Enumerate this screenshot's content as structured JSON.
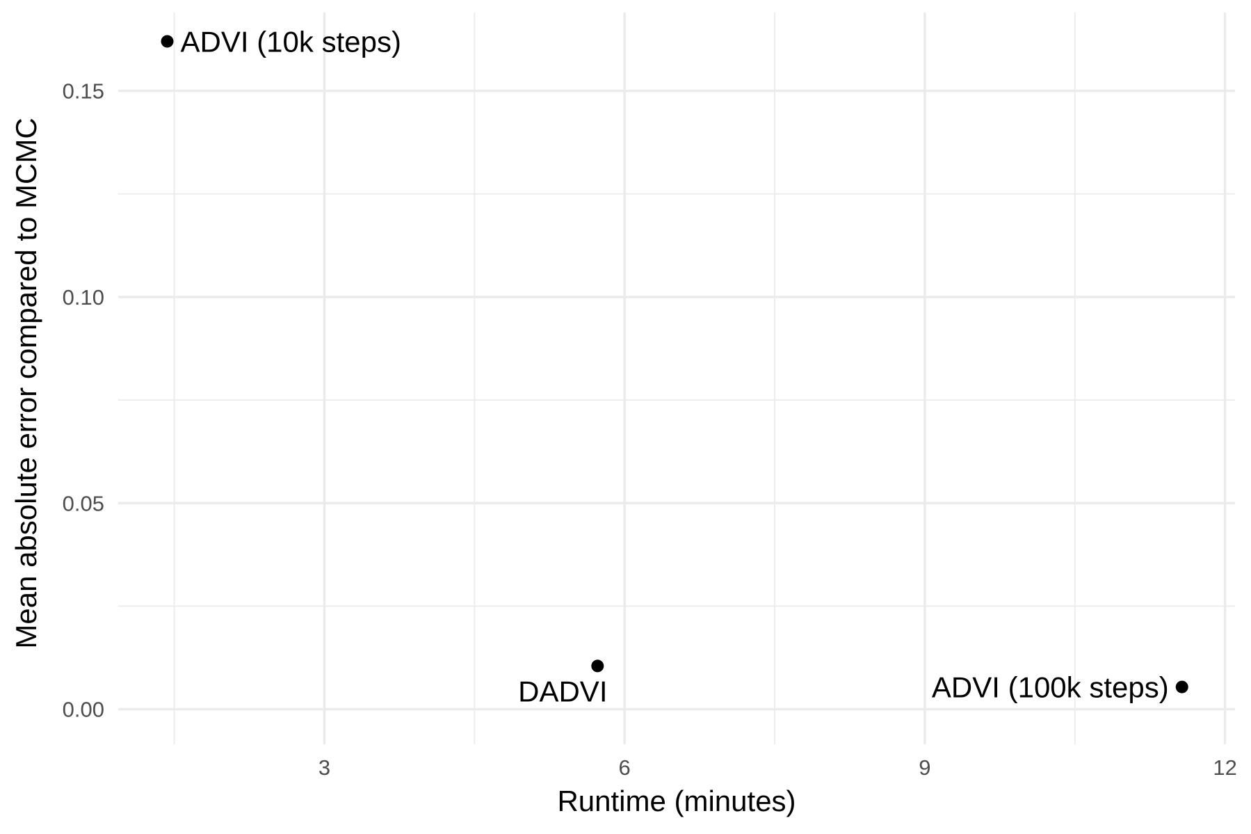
{
  "chart_data": {
    "type": "scatter",
    "xlabel": "Runtime (minutes)",
    "ylabel": "Mean absolute error compared to MCMC",
    "xlim": [
      0.94,
      12.1
    ],
    "ylim": [
      -0.0085,
      0.169
    ],
    "x_ticks": [
      {
        "value": 3,
        "label": "3"
      },
      {
        "value": 6,
        "label": "6"
      },
      {
        "value": 9,
        "label": "9"
      },
      {
        "value": 12,
        "label": "12"
      }
    ],
    "x_minor_ticks": [
      1.5,
      4.5,
      7.5,
      10.5
    ],
    "y_ticks": [
      {
        "value": 0.0,
        "label": "0.00"
      },
      {
        "value": 0.05,
        "label": "0.05"
      },
      {
        "value": 0.1,
        "label": "0.10"
      },
      {
        "value": 0.15,
        "label": "0.15"
      }
    ],
    "y_minor_ticks": [
      0.025,
      0.075,
      0.125
    ],
    "grid": true,
    "legend": "none",
    "point_color": "#000000",
    "points": [
      {
        "label": "ADVI (10k steps)",
        "x": 1.43,
        "y": 0.162,
        "label_position": "right"
      },
      {
        "label": "DADVI",
        "x": 5.73,
        "y": 0.0105,
        "label_position": "below-left"
      },
      {
        "label": "ADVI (100k steps)",
        "x": 11.57,
        "y": 0.0054,
        "label_position": "left"
      }
    ]
  }
}
